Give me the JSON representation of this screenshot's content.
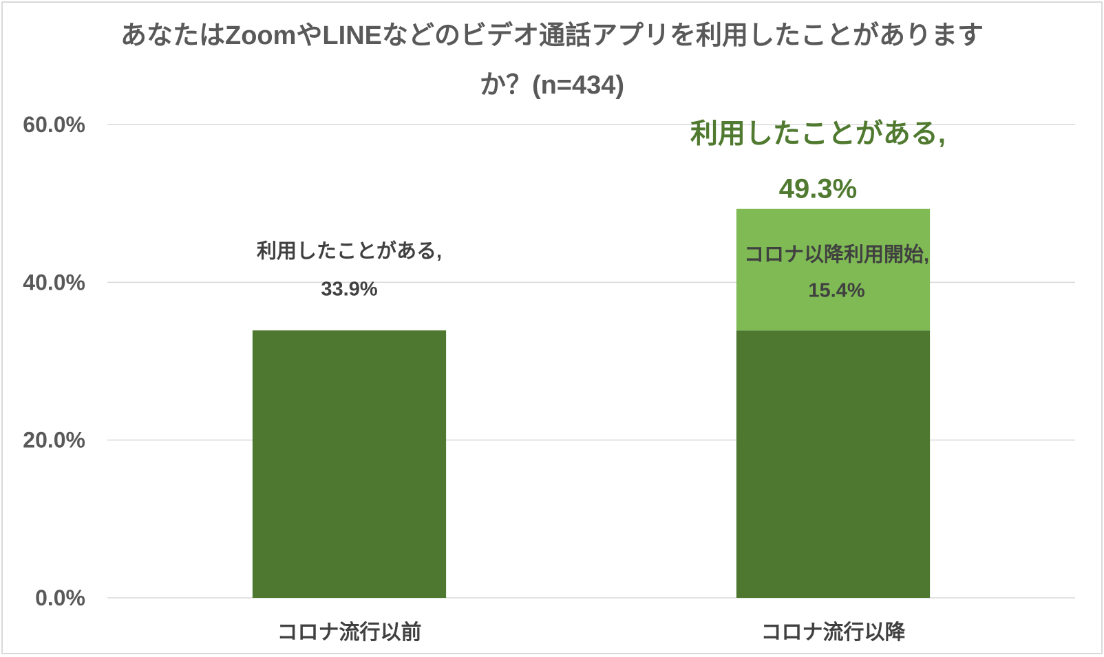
{
  "chart_data": {
    "type": "bar",
    "stacked": true,
    "title_lines": [
      "あなたはZoomやLINEなどのビデオ通話アプリを利用したことがあります",
      "か？(n=434)"
    ],
    "categories": [
      "コロナ流行以前",
      "コロナ流行以降"
    ],
    "ylim": [
      0,
      60
    ],
    "yticks": [
      "0.0%",
      "20.0%",
      "40.0%",
      "60.0%"
    ],
    "ytick_values": [
      0,
      20,
      40,
      60
    ],
    "grid": true,
    "legend": "none",
    "series": [
      {
        "values": [
          33.9,
          33.9
        ],
        "color": "#4e7830",
        "data_labels": [
          {
            "name": "利用したことがある,",
            "value": "33.9%"
          },
          null
        ]
      },
      {
        "values": [
          0,
          15.4
        ],
        "color": "#7fba55",
        "data_labels": [
          null,
          {
            "name": "コロナ以降利用開始,",
            "value": "15.4%"
          }
        ]
      }
    ],
    "total_labels": [
      null,
      {
        "name": "利用したことがある,",
        "value": "49.3%",
        "color": "#507a30"
      }
    ]
  }
}
